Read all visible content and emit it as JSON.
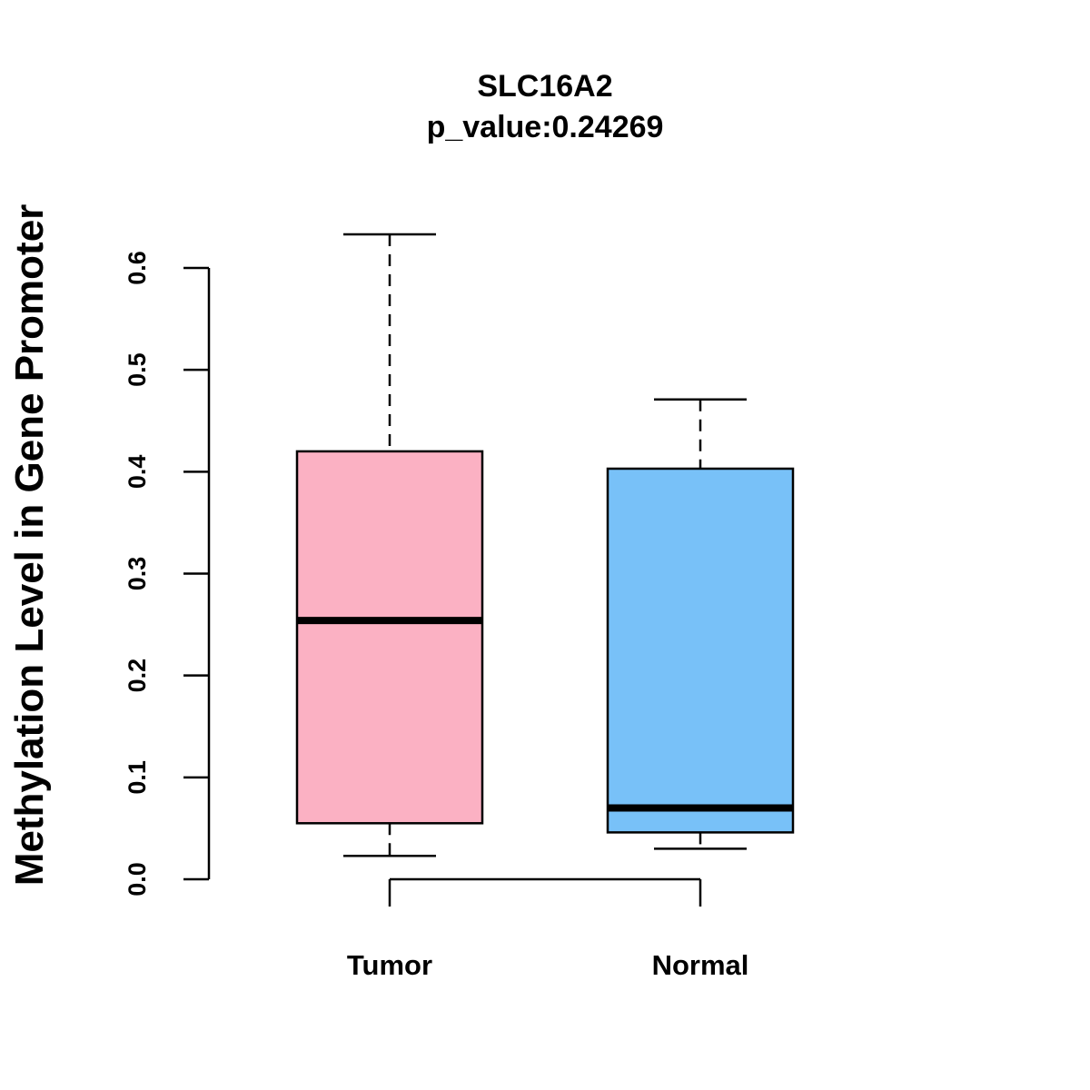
{
  "chart_data": {
    "type": "boxplot",
    "title": "SLC16A2",
    "subtitle": "p_value:0.24269",
    "xlabel": "",
    "ylabel": "Methylation Level in Gene Promoter",
    "ylim": [
      0,
      0.6
    ],
    "yticks": [
      0.0,
      0.1,
      0.2,
      0.3,
      0.4,
      0.5,
      0.6
    ],
    "ytick_labels": [
      "0.0",
      "0.1",
      "0.2",
      "0.3",
      "0.4",
      "0.5",
      "0.6"
    ],
    "grid": false,
    "categories": [
      "Tumor",
      "Normal"
    ],
    "series": [
      {
        "name": "Tumor",
        "whisker_low": 0.023,
        "q1": 0.055,
        "median": 0.254,
        "q3": 0.42,
        "whisker_high": 0.633,
        "color": "#FBB1C3"
      },
      {
        "name": "Normal",
        "whisker_low": 0.03,
        "q1": 0.046,
        "median": 0.07,
        "q3": 0.403,
        "whisker_high": 0.471,
        "color": "#78C1F8"
      }
    ]
  }
}
